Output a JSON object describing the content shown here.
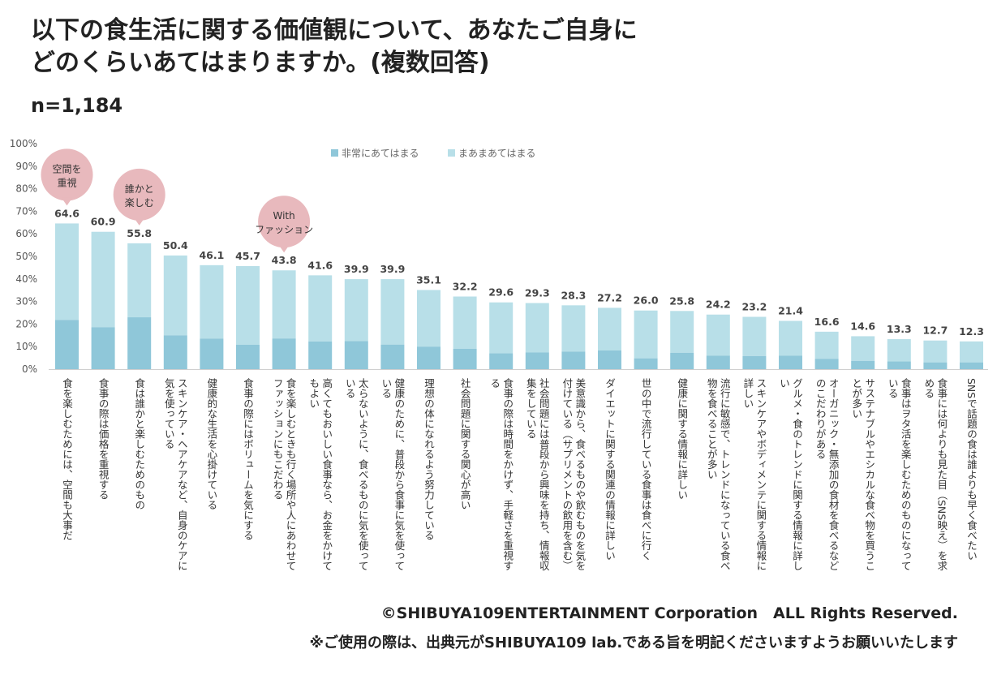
{
  "header": {
    "title_line1": "以下の食生活に関する価値観について、あなたご自身に",
    "title_line2": "どのくらいあてはまりますか。(複数回答)",
    "sample": "n=1,184"
  },
  "colors": {
    "strong": "#8fc7d9",
    "soft": "#b8dfe8",
    "bubble": "#e8b9bd"
  },
  "annotations": [
    {
      "label_line1": "空間を",
      "label_line2": "重視",
      "category_index": 0
    },
    {
      "label_line1": "誰かと",
      "label_line2": "楽しむ",
      "category_index": 2
    },
    {
      "label_line1": "With",
      "label_line2": "ファッション",
      "category_index": 6
    }
  ],
  "chart_data": {
    "type": "bar",
    "stacked": true,
    "legend": [
      "非常にあてはまる",
      "まあまあてはまる"
    ],
    "y_ticks": [
      "0%",
      "10%",
      "20%",
      "30%",
      "40%",
      "50%",
      "60%",
      "70%",
      "80%",
      "90%",
      "100%"
    ],
    "ylim": [
      0,
      100
    ],
    "totals": [
      "64.6",
      "60.9",
      "55.8",
      "50.4",
      "46.1",
      "45.7",
      "43.8",
      "41.6",
      "39.9",
      "39.9",
      "35.1",
      "32.2",
      "29.6",
      "29.3",
      "28.3",
      "27.2",
      "26.0",
      "25.8",
      "24.2",
      "23.2",
      "21.4",
      "16.6",
      "14.6",
      "13.3",
      "12.7",
      "12.3"
    ],
    "strong_values": [
      21.8,
      18.6,
      23.0,
      15.0,
      13.5,
      10.8,
      13.6,
      12.3,
      12.4,
      10.9,
      10.0,
      9.0,
      7.0,
      7.4,
      7.8,
      8.3,
      4.8,
      7.2,
      6.0,
      5.8,
      6.0,
      4.6,
      3.6,
      3.4,
      3.0,
      3.0
    ],
    "categories": [
      [
        "食を楽しむためには、空間も大事だ"
      ],
      [
        "食事の際は価格を重視する"
      ],
      [
        "食は誰かと楽しむためのもの"
      ],
      [
        "スキンケア・ヘアケアなど、自身のケアに",
        "気を使っている"
      ],
      [
        "健康的な生活を心掛けている"
      ],
      [
        "食事の際にはボリュームを気にする"
      ],
      [
        "食を楽しむときも行く場所や人にあわせて",
        "ファッションにもこだわる"
      ],
      [
        "高くてもおいしい食事なら、お金をかけて",
        "もよい"
      ],
      [
        "太らないように、食べるものに気を使って",
        "いる"
      ],
      [
        "健康のために、普段から食事に気を使って",
        "いる"
      ],
      [
        "理想の体になれるよう努力している"
      ],
      [
        "社会問題に関する関心が高い"
      ],
      [
        "食事の際は時間をかけず、手軽さを重視す",
        "る"
      ],
      [
        "社会問題には普段から興味を持ち、情報収",
        "集をしている"
      ],
      [
        "美意識から、食べるものや飲むものを気を",
        "付けている（サプリメントの飲用を含む）"
      ],
      [
        "ダイエットに関する関連の情報に詳しい"
      ],
      [
        "世の中で流行している食事は食べに行く"
      ],
      [
        "健康に関する情報に詳しい"
      ],
      [
        "流行に敏感で、トレンドになっている食べ",
        "物を食べることが多い"
      ],
      [
        "スキンケアやボディメンテに関する情報に",
        "詳しい"
      ],
      [
        "グルメ・食のトレンドに関する情報に詳し",
        "い"
      ],
      [
        "オーガニック・無添加の食材を食べるなど",
        "のこだわりがある"
      ],
      [
        "サステナブルやエシカルな食べ物を買うこ",
        "とが多い"
      ],
      [
        "食事はヲタ活を楽しむためのものになって",
        "いる"
      ],
      [
        "食事には何よりも見た目（SNS映え）を求",
        "める"
      ],
      [
        "SNSで話題の食は誰よりも早く食べたい"
      ]
    ]
  },
  "footer": {
    "copyright": "©SHIBUYA109ENTERTAINMENT Corporation　ALL Rights Reserved.",
    "notice": "※ご使用の際は、出典元がSHIBUYA109 lab.である旨を明記くださいますようお願いいたします"
  }
}
